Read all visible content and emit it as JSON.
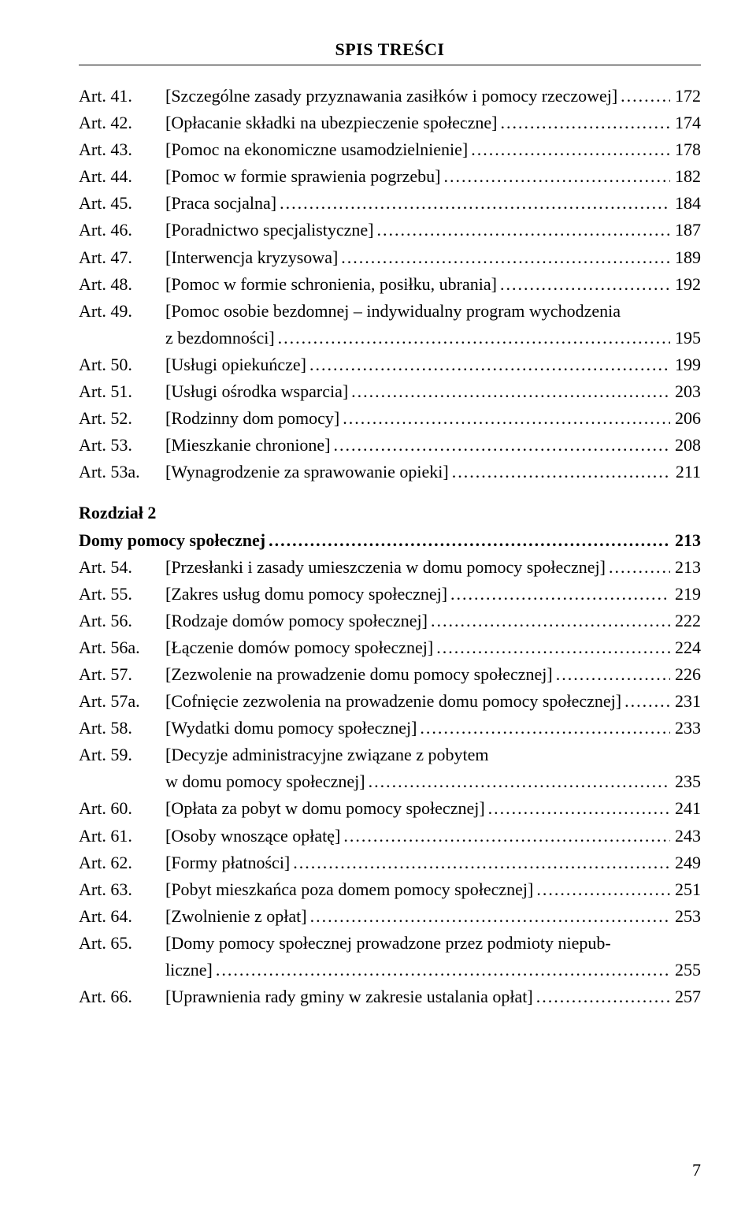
{
  "header": "SPIS TREŚCI",
  "footer_page": "7",
  "sections": [
    {
      "type": "entries",
      "entries": [
        {
          "art": "Art. 41.",
          "lines": [
            {
              "text": "[Szczególne zasady przyznawania zasiłków i pomocy rzeczowej]",
              "page": "172"
            }
          ]
        },
        {
          "art": "Art. 42.",
          "lines": [
            {
              "text": "[Opłacanie składki na ubezpieczenie społeczne]",
              "page": "174"
            }
          ]
        },
        {
          "art": "Art. 43.",
          "lines": [
            {
              "text": "[Pomoc na ekonomiczne usamodzielnienie]",
              "page": "178"
            }
          ]
        },
        {
          "art": "Art. 44.",
          "lines": [
            {
              "text": "[Pomoc w formie sprawienia pogrzebu]",
              "page": "182"
            }
          ]
        },
        {
          "art": "Art. 45.",
          "lines": [
            {
              "text": "[Praca socjalna]",
              "page": "184"
            }
          ]
        },
        {
          "art": "Art. 46.",
          "lines": [
            {
              "text": "[Poradnictwo specjalistyczne]",
              "page": "187"
            }
          ]
        },
        {
          "art": "Art. 47.",
          "lines": [
            {
              "text": "[Interwencja kryzysowa]",
              "page": "189"
            }
          ]
        },
        {
          "art": "Art. 48.",
          "lines": [
            {
              "text": "[Pomoc w formie schronienia, posiłku, ubrania]",
              "page": "192"
            }
          ]
        },
        {
          "art": "Art. 49.",
          "lines": [
            {
              "text": "[Pomoc osobie bezdomnej – indywidualny program wychodzenia",
              "nodots": true
            },
            {
              "text": "z bezdomności]",
              "page": "195"
            }
          ]
        },
        {
          "art": "Art. 50.",
          "lines": [
            {
              "text": "[Usługi opiekuńcze]",
              "page": "199"
            }
          ]
        },
        {
          "art": "Art. 51.",
          "lines": [
            {
              "text": "[Usługi ośrodka wsparcia]",
              "page": "203"
            }
          ]
        },
        {
          "art": "Art. 52.",
          "lines": [
            {
              "text": "[Rodzinny dom pomocy]",
              "page": "206"
            }
          ]
        },
        {
          "art": "Art. 53.",
          "lines": [
            {
              "text": "[Mieszkanie chronione]",
              "page": "208"
            }
          ]
        },
        {
          "art": "Art. 53a.",
          "lines": [
            {
              "text": "[Wynagrodzenie za sprawowanie opieki]",
              "page": "211"
            }
          ]
        }
      ]
    },
    {
      "type": "section-header",
      "lines": [
        {
          "text": "Rozdział 2",
          "bold": true
        },
        {
          "text": "Domy pomocy społecznej",
          "bold": true,
          "page": "213"
        }
      ]
    },
    {
      "type": "entries",
      "entries": [
        {
          "art": "Art. 54.",
          "lines": [
            {
              "text": "[Przesłanki i zasady umieszczenia w domu pomocy społecznej]",
              "page": "213"
            }
          ]
        },
        {
          "art": "Art. 55.",
          "lines": [
            {
              "text": "[Zakres usług domu pomocy społecznej]",
              "page": "219"
            }
          ]
        },
        {
          "art": "Art. 56.",
          "lines": [
            {
              "text": "[Rodzaje domów pomocy społecznej]",
              "page": "222"
            }
          ]
        },
        {
          "art": "Art. 56a.",
          "lines": [
            {
              "text": "[Łączenie domów pomocy społecznej]",
              "page": "224"
            }
          ]
        },
        {
          "art": "Art. 57.",
          "lines": [
            {
              "text": "[Zezwolenie na prowadzenie domu pomocy społecznej]",
              "page": "226"
            }
          ]
        },
        {
          "art": "Art. 57a.",
          "lines": [
            {
              "text": "[Cofnięcie zezwolenia na prowadzenie domu pomocy społecznej]",
              "page": "231"
            }
          ]
        },
        {
          "art": "Art. 58.",
          "lines": [
            {
              "text": "[Wydatki domu pomocy społecznej]",
              "page": "233"
            }
          ]
        },
        {
          "art": "Art. 59.",
          "lines": [
            {
              "text": "[Decyzje administracyjne związane z pobytem",
              "nodots": true
            },
            {
              "text": "w domu pomocy społecznej]",
              "page": "235"
            }
          ]
        },
        {
          "art": "Art. 60.",
          "lines": [
            {
              "text": "[Opłata za pobyt w domu pomocy społecznej]",
              "page": "241"
            }
          ]
        },
        {
          "art": "Art. 61.",
          "lines": [
            {
              "text": "[Osoby wnoszące opłatę]",
              "page": "243"
            }
          ]
        },
        {
          "art": "Art. 62.",
          "lines": [
            {
              "text": "[Formy płatności]",
              "page": "249"
            }
          ]
        },
        {
          "art": "Art. 63.",
          "lines": [
            {
              "text": "[Pobyt mieszkańca poza domem pomocy społecznej]",
              "page": "251"
            }
          ]
        },
        {
          "art": "Art. 64.",
          "lines": [
            {
              "text": "[Zwolnienie z opłat]",
              "page": "253"
            }
          ]
        },
        {
          "art": "Art. 65.",
          "lines": [
            {
              "text": "[Domy pomocy społecznej prowadzone przez podmioty niepub-",
              "nodots": true
            },
            {
              "text": "liczne]",
              "page": "255"
            }
          ]
        },
        {
          "art": "Art. 66.",
          "lines": [
            {
              "text": "[Uprawnienia rady gminy w zakresie ustalania opłat]",
              "page": "257"
            }
          ]
        }
      ]
    }
  ]
}
